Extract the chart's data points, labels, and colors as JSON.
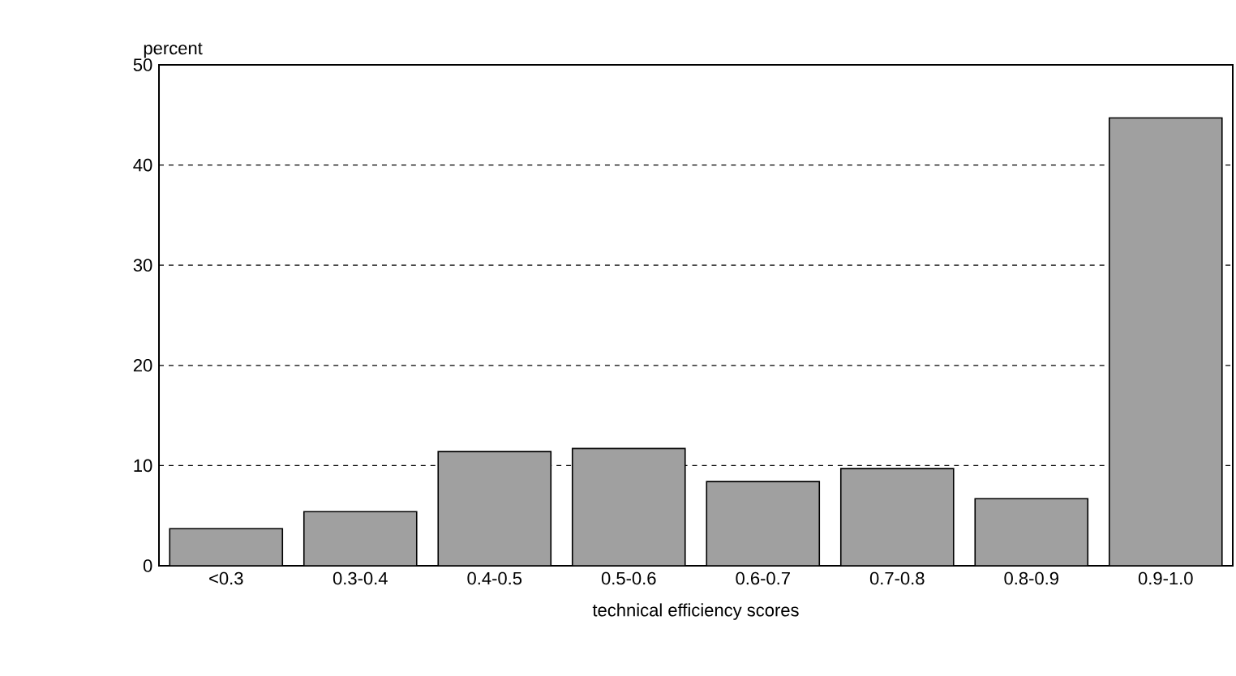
{
  "chart_data": {
    "type": "bar",
    "ylabel": "percent",
    "xlabel": "technical efficiency scores",
    "categories": [
      "<0.3",
      "0.3-0.4",
      "0.4-0.5",
      "0.5-0.6",
      "0.6-0.7",
      "0.7-0.8",
      "0.8-0.9",
      "0.9-1.0"
    ],
    "values": [
      3.7,
      5.4,
      11.4,
      11.7,
      8.4,
      9.7,
      6.7,
      44.7
    ],
    "color": "#a0a0a0",
    "ylim": [
      0,
      50
    ],
    "yticks": [
      0,
      10,
      20,
      30,
      40,
      50
    ],
    "grid": "y"
  }
}
